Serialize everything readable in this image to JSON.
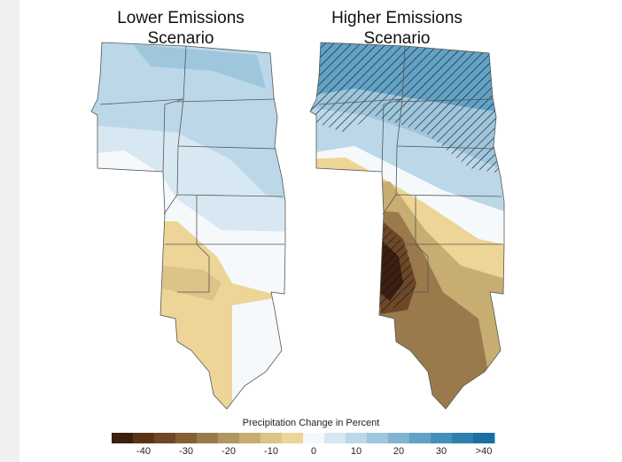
{
  "maps": [
    {
      "title_line1": "Lower Emissions",
      "title_line2": "Scenario"
    },
    {
      "title_line1": "Higher Emissions",
      "title_line2": "Scenario"
    }
  ],
  "legend": {
    "title": "Precipitation Change in Percent",
    "colors": [
      "#3b1f10",
      "#5a3419",
      "#6e4727",
      "#846036",
      "#9a7a4c",
      "#b09660",
      "#c8ad72",
      "#dcc388",
      "#ecd596",
      "#f5f9fc",
      "#d8e8f2",
      "#bcd8e8",
      "#9ec6dd",
      "#80b4d2",
      "#62a2c6",
      "#4590ba",
      "#2f7fae",
      "#1a70a3"
    ],
    "ticks": [
      "-40",
      "-30",
      "-20",
      "-10",
      "0",
      "10",
      "20",
      "30",
      ">40"
    ]
  }
}
